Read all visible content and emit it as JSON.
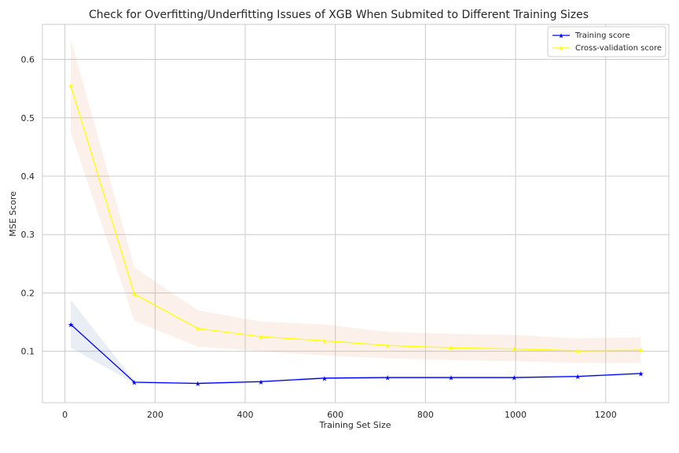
{
  "chart_data": {
    "type": "line",
    "title": "Check for Overfitting/Underfitting Issues of XGB When Submited to Different Training Sizes",
    "xlabel": "Training Set Size",
    "ylabel": "MSE Score",
    "xlim": [
      -50,
      1340
    ],
    "ylim": [
      0.012,
      0.66
    ],
    "xticks": [
      0,
      200,
      400,
      600,
      800,
      1000,
      1200
    ],
    "xtick_labels": [
      "0",
      "200",
      "400",
      "600",
      "800",
      "1000",
      "1200"
    ],
    "yticks": [
      0.1,
      0.2,
      0.3,
      0.4,
      0.5,
      0.6
    ],
    "ytick_labels": [
      "0.1",
      "0.2",
      "0.3",
      "0.4",
      "0.5",
      "0.6"
    ],
    "grid": true,
    "legend": "top-right",
    "x": [
      13,
      154,
      295,
      435,
      576,
      716,
      857,
      997,
      1138,
      1278
    ],
    "series": [
      {
        "name": "Training score",
        "color": "#0000ff",
        "band_color": "#4c72b0",
        "values": [
          0.146,
          0.047,
          0.045,
          0.048,
          0.054,
          0.055,
          0.055,
          0.055,
          0.057,
          0.062
        ],
        "band_low": [
          0.106,
          0.045,
          0.043,
          0.046,
          0.052,
          0.053,
          0.053,
          0.053,
          0.055,
          0.06
        ],
        "band_high": [
          0.188,
          0.049,
          0.047,
          0.05,
          0.056,
          0.057,
          0.057,
          0.057,
          0.059,
          0.064
        ]
      },
      {
        "name": "Cross-validation score",
        "color": "#ffff00",
        "band_color": "#dd8452",
        "values": [
          0.555,
          0.198,
          0.139,
          0.125,
          0.118,
          0.11,
          0.106,
          0.104,
          0.101,
          0.102
        ],
        "band_low": [
          0.475,
          0.152,
          0.108,
          0.1,
          0.093,
          0.088,
          0.085,
          0.083,
          0.08,
          0.08
        ],
        "band_high": [
          0.634,
          0.244,
          0.17,
          0.151,
          0.146,
          0.133,
          0.13,
          0.128,
          0.122,
          0.124
        ]
      }
    ]
  }
}
